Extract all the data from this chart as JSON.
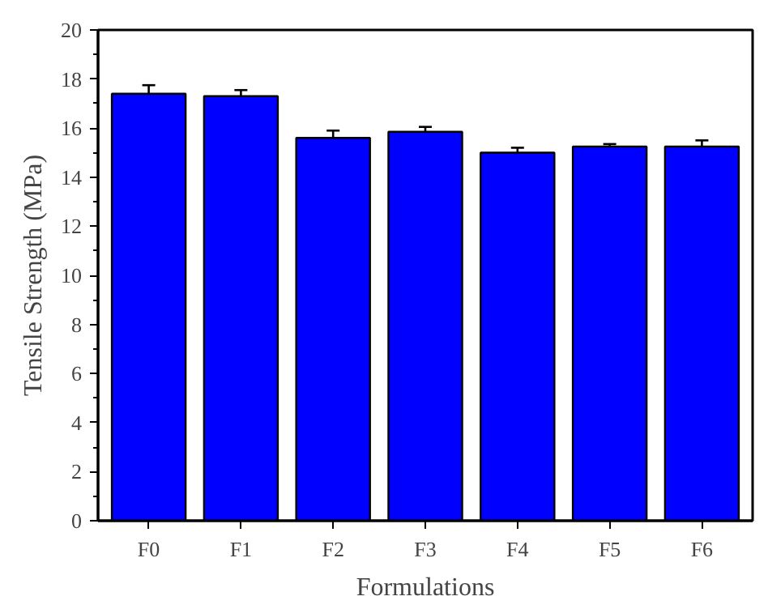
{
  "chart_data": {
    "type": "bar",
    "xlabel": "Formulations",
    "ylabel": "Tensile Strength (MPa)",
    "categories": [
      "F0",
      "F1",
      "F2",
      "F3",
      "F4",
      "F5",
      "F6"
    ],
    "values": [
      17.4,
      17.3,
      15.6,
      15.85,
      15.0,
      15.25,
      15.25
    ],
    "errors": [
      0.35,
      0.25,
      0.3,
      0.2,
      0.2,
      0.1,
      0.25
    ],
    "color": "#0000ff",
    "ylim": [
      0,
      20
    ],
    "yticks": [
      0,
      2,
      4,
      6,
      8,
      10,
      12,
      14,
      16,
      18,
      20
    ],
    "grid": false
  }
}
